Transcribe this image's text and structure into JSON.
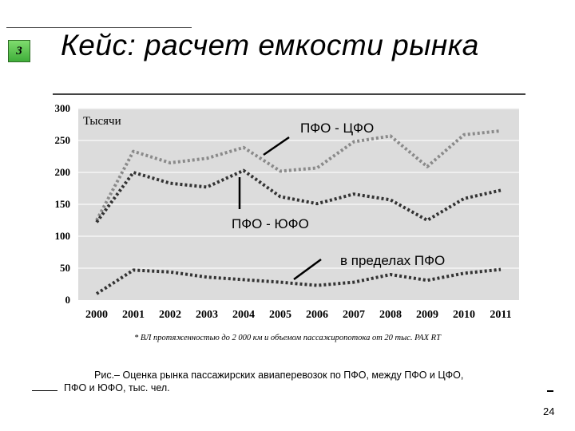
{
  "slide": {
    "number": "3",
    "title": "Кейс: расчет емкости рынка",
    "caption_line1": "Рис.– Оценка рынка пассажирских  авиаперевозок по ПФО, между ПФО и ЦФО,",
    "caption_line2": "ПФО и ЮФО, тыс. чел.",
    "page_number": "24"
  },
  "chart_data": {
    "type": "line",
    "ylabel": "Тысячи",
    "footnote": "* ВЛ протяженностью до 2 000 км и объемом пассажиропотока от 20 тыс. PAX RT",
    "categories": [
      "2000",
      "2001",
      "2002",
      "2003",
      "2004",
      "2005",
      "2006",
      "2007",
      "2008",
      "2009",
      "2010",
      "2011"
    ],
    "yticks": [
      0,
      50,
      100,
      150,
      200,
      250,
      300
    ],
    "ylim": [
      0,
      300
    ],
    "grid": true,
    "series": [
      {
        "name": "ПФО - ЦФО",
        "color": "#8a8a8a",
        "values": [
          125,
          233,
          215,
          222,
          239,
          202,
          207,
          248,
          257,
          209,
          259,
          265
        ]
      },
      {
        "name": "ПФО - ЮФО",
        "color": "#333333",
        "values": [
          122,
          200,
          183,
          177,
          203,
          162,
          151,
          166,
          157,
          125,
          159,
          172
        ]
      },
      {
        "name": "в пределах ПФО",
        "color": "#333333",
        "values": [
          10,
          47,
          44,
          36,
          32,
          28,
          23,
          28,
          40,
          31,
          42,
          48
        ]
      }
    ],
    "annotations": [
      {
        "series": 0,
        "text": "ПФО - ЦФО"
      },
      {
        "series": 1,
        "text": "ПФО - ЮФО"
      },
      {
        "series": 2,
        "text": "в пределах ПФО"
      }
    ]
  }
}
